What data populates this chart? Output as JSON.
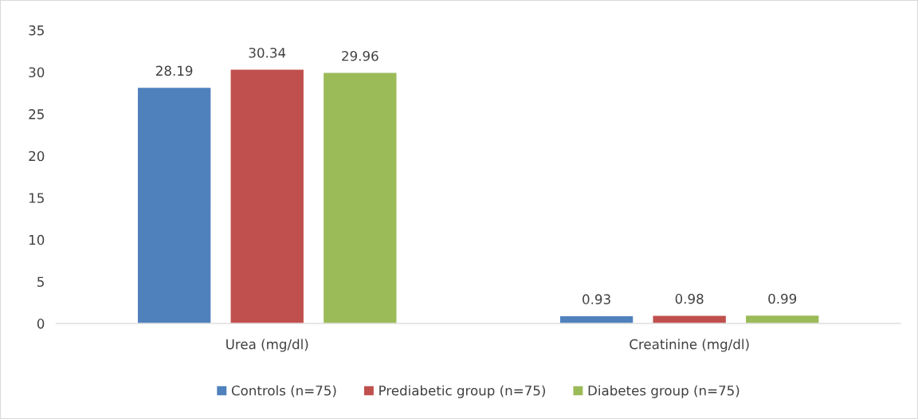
{
  "chart_data": {
    "type": "bar",
    "categories": [
      "Urea (mg/dl)",
      "Creatinine (mg/dl)"
    ],
    "series": [
      {
        "name": "Controls (n=75)",
        "color": "#4f81bd",
        "values": [
          28.19,
          0.93
        ]
      },
      {
        "name": "Prediabetic group (n=75)",
        "color": "#c0504d",
        "values": [
          30.34,
          0.98
        ]
      },
      {
        "name": "Diabetes group (n=75)",
        "color": "#9bbb59",
        "values": [
          29.96,
          0.99
        ]
      }
    ],
    "ylim": [
      0,
      35
    ],
    "yticks": [
      0,
      5,
      10,
      15,
      20,
      25,
      30,
      35
    ],
    "data_labels": true,
    "grid": false,
    "legend": "bottom"
  }
}
